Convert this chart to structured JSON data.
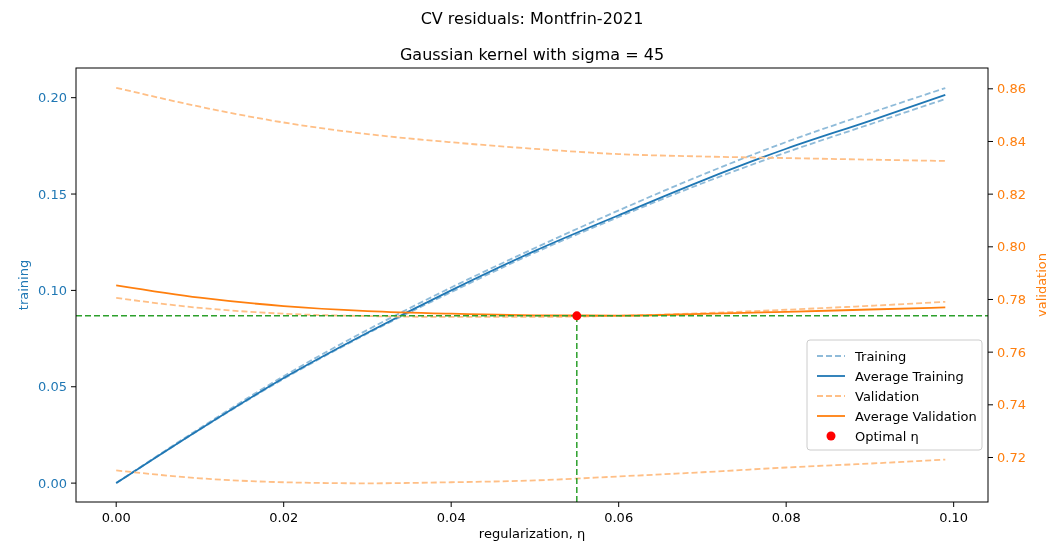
{
  "chart_data": {
    "type": "line",
    "title": "CV residuals: Montfrin-2021",
    "subtitle": "Gaussian kernel with sigma = 45",
    "xlabel": "regularization, η",
    "ylabel": "training",
    "y2label": "validation",
    "x": [
      0,
      0.01,
      0.02,
      0.03,
      0.04,
      0.05,
      0.06,
      0.07,
      0.08,
      0.09,
      0.099
    ],
    "xlim": [
      -0.0048,
      0.1041
    ],
    "ylim": [
      -0.0098,
      0.2154
    ],
    "y2lim": [
      0.7031,
      0.8679
    ],
    "xticks": [
      {
        "value": 0,
        "label": "0.00"
      },
      {
        "value": 0.02,
        "label": "0.02"
      },
      {
        "value": 0.04,
        "label": "0.04"
      },
      {
        "value": 0.06,
        "label": "0.06"
      },
      {
        "value": 0.08,
        "label": "0.08"
      },
      {
        "value": 0.1,
        "label": "0.10"
      }
    ],
    "yticks": [
      {
        "value": 0,
        "label": "0.00"
      },
      {
        "value": 0.05,
        "label": "0.05"
      },
      {
        "value": 0.1,
        "label": "0.10"
      },
      {
        "value": 0.15,
        "label": "0.15"
      },
      {
        "value": 0.2,
        "label": "0.20"
      }
    ],
    "y2ticks": [
      {
        "value": 0.72,
        "label": "0.72"
      },
      {
        "value": 0.74,
        "label": "0.74"
      },
      {
        "value": 0.76,
        "label": "0.76"
      },
      {
        "value": 0.78,
        "label": "0.78"
      },
      {
        "value": 0.8,
        "label": "0.80"
      },
      {
        "value": 0.82,
        "label": "0.82"
      },
      {
        "value": 0.84,
        "label": "0.84"
      },
      {
        "value": 0.86,
        "label": "0.86"
      }
    ],
    "series": [
      {
        "name": "Training",
        "color": "#8fbbd9",
        "line_style": "dashed",
        "values": [
          0,
          0.0285,
          0.0555,
          0.0795,
          0.1015,
          0.122,
          0.1415,
          0.16,
          0.177,
          0.192,
          0.205
        ]
      },
      {
        "color": "#8fbbd9",
        "line_style": "dashed",
        "values": [
          0,
          0.0278,
          0.0541,
          0.0776,
          0.0991,
          0.1196,
          0.1381,
          0.1556,
          0.1716,
          0.1862,
          0.1993
        ]
      },
      {
        "name": "Average Training",
        "color": "#1f77b4",
        "line_style": "solid",
        "values": [
          0,
          0.028,
          0.0545,
          0.078,
          0.1,
          0.1205,
          0.139,
          0.157,
          0.1735,
          0.188,
          0.2015
        ]
      },
      {
        "name": "Validation",
        "axis": "y2",
        "color": "#ffbf86",
        "line_style": "dashed",
        "values": [
          0.8604,
          0.8532,
          0.8472,
          0.8428,
          0.8397,
          0.8372,
          0.8352,
          0.8343,
          0.8337,
          0.8331,
          0.8326
        ]
      },
      {
        "axis": "y2",
        "color": "#ffbf86",
        "line_style": "dashed",
        "values": [
          0.7806,
          0.7768,
          0.7746,
          0.7737,
          0.7734,
          0.7734,
          0.7738,
          0.7748,
          0.7761,
          0.7776,
          0.7791
        ]
      },
      {
        "axis": "y2",
        "color": "#ffbf86",
        "line_style": "dashed",
        "values": [
          0.7151,
          0.7121,
          0.7106,
          0.7102,
          0.7106,
          0.7113,
          0.7128,
          0.7144,
          0.7162,
          0.7177,
          0.7192
        ]
      },
      {
        "name": "Average Validation",
        "axis": "y2",
        "color": "#ff7f0e",
        "line_style": "solid",
        "values": [
          0.7854,
          0.7807,
          0.7775,
          0.7756,
          0.7746,
          0.774,
          0.7739,
          0.7745,
          0.7753,
          0.7762,
          0.777
        ]
      },
      {
        "name": "Optimal η",
        "type": "scatter",
        "axis": "y2",
        "color": "#ff0000",
        "marker": "circle",
        "x": [
          0.055
        ],
        "values": [
          0.7738
        ]
      }
    ],
    "ref_lines": [
      {
        "axis": "y2",
        "value": 0.7738,
        "color": "#2ca02c",
        "line_style": "dashed"
      },
      {
        "axis": "x",
        "value": 0.055,
        "color": "#2ca02c",
        "line_style": "dashed"
      }
    ],
    "legend": "bottom right",
    "grid": false
  }
}
